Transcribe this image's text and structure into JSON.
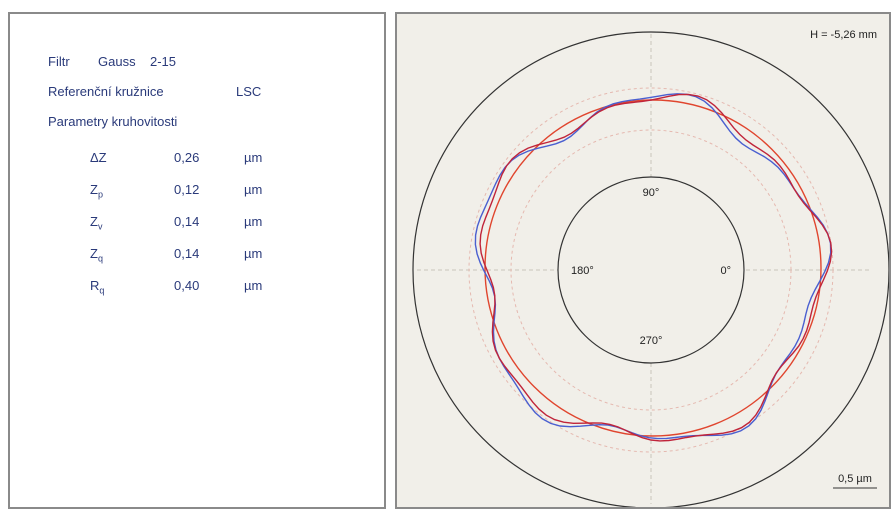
{
  "left": {
    "filter_label": "Filtr",
    "filter": "Gauss",
    "filter_range": "2-15",
    "reference_label": "Referenční kružnice",
    "reference": "LSC",
    "parameters_title": "Parametry kruhovitosti",
    "parameters": [
      {
        "symbol": "ΔZ",
        "value": "0,26",
        "unit": "µm"
      },
      {
        "symbol": "Z",
        "subscript": "p",
        "value": "0,12",
        "unit": "µm"
      },
      {
        "symbol": "Z",
        "subscript": "v",
        "value": "0,14",
        "unit": "µm"
      },
      {
        "symbol": "Z",
        "subscript": "q",
        "value": "0,14",
        "unit": "µm"
      },
      {
        "symbol": "R",
        "subscript": "q",
        "value": "0,40",
        "unit": "µm"
      }
    ]
  },
  "right": {
    "height": "H = -5,26 mm",
    "angles": [
      "90°",
      "180°",
      "0°",
      "270°"
    ],
    "scale": "0,5 µm"
  }
}
